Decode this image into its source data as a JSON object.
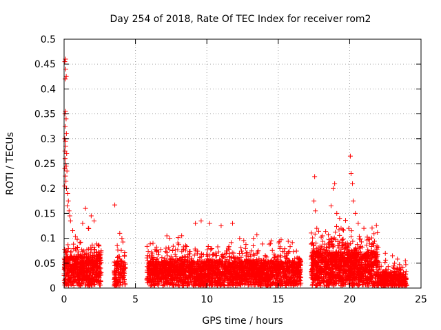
{
  "chart_data": {
    "type": "scatter",
    "title": "Day 254 of 2018, Rate Of TEC Index for receiver rom2",
    "xlabel": "GPS time / hours",
    "ylabel": "ROTI / TECUs",
    "xlim": [
      0,
      25
    ],
    "ylim": [
      0,
      0.5
    ],
    "xticks": [
      0,
      5,
      10,
      15,
      20,
      25
    ],
    "xtick_labels": [
      "0",
      "5",
      "10",
      "15",
      "20",
      "25"
    ],
    "yticks": [
      0,
      0.05,
      0.1,
      0.15,
      0.2,
      0.25,
      0.3,
      0.35,
      0.4,
      0.45,
      0.5
    ],
    "ytick_labels": [
      "0",
      "0.05",
      "0.1",
      "0.15",
      "0.2",
      "0.25",
      "0.3",
      "0.35",
      "0.4",
      "0.45",
      "0.5"
    ],
    "grid": true,
    "marker": "+",
    "series": [
      {
        "name": "ROTI",
        "color": "#ff0000",
        "clusters": [
          {
            "x_start": 0.0,
            "x_end": 2.6,
            "count": 700,
            "base_max": 0.06,
            "decay": 0.018
          },
          {
            "x_start": 3.5,
            "x_end": 4.3,
            "count": 150,
            "base_max": 0.05,
            "decay": 0.014
          },
          {
            "x_start": 5.8,
            "x_end": 16.6,
            "count": 2600,
            "base_max": 0.05,
            "decay": 0.016
          },
          {
            "x_start": 17.3,
            "x_end": 22.0,
            "count": 1300,
            "base_max": 0.07,
            "decay": 0.02
          },
          {
            "x_start": 22.0,
            "x_end": 24.0,
            "count": 350,
            "base_max": 0.025,
            "decay": 0.01
          }
        ],
        "points": [
          [
            0.05,
            0.455
          ],
          [
            0.1,
            0.46
          ],
          [
            0.08,
            0.42
          ],
          [
            0.12,
            0.44
          ],
          [
            0.15,
            0.425
          ],
          [
            0.06,
            0.35
          ],
          [
            0.1,
            0.355
          ],
          [
            0.14,
            0.34
          ],
          [
            0.08,
            0.325
          ],
          [
            0.16,
            0.31
          ],
          [
            0.05,
            0.3
          ],
          [
            0.1,
            0.295
          ],
          [
            0.12,
            0.285
          ],
          [
            0.06,
            0.275
          ],
          [
            0.18,
            0.27
          ],
          [
            0.07,
            0.26
          ],
          [
            0.11,
            0.25
          ],
          [
            0.15,
            0.245
          ],
          [
            0.05,
            0.24
          ],
          [
            0.2,
            0.235
          ],
          [
            0.09,
            0.225
          ],
          [
            0.13,
            0.215
          ],
          [
            0.04,
            0.205
          ],
          [
            0.17,
            0.2
          ],
          [
            0.25,
            0.19
          ],
          [
            0.3,
            0.175
          ],
          [
            0.22,
            0.165
          ],
          [
            0.35,
            0.155
          ],
          [
            0.4,
            0.145
          ],
          [
            0.45,
            0.135
          ],
          [
            1.5,
            0.16
          ],
          [
            1.3,
            0.13
          ],
          [
            1.7,
            0.12
          ],
          [
            1.9,
            0.145
          ],
          [
            2.1,
            0.135
          ],
          [
            3.55,
            0.167
          ],
          [
            3.9,
            0.11
          ],
          [
            4.05,
            0.1
          ],
          [
            7.2,
            0.105
          ],
          [
            7.4,
            0.1
          ],
          [
            9.2,
            0.13
          ],
          [
            9.6,
            0.135
          ],
          [
            10.2,
            0.13
          ],
          [
            11.0,
            0.125
          ],
          [
            11.8,
            0.13
          ],
          [
            12.3,
            0.1
          ],
          [
            13.6,
            0.075
          ],
          [
            14.5,
            0.095
          ],
          [
            15.2,
            0.097
          ],
          [
            17.55,
            0.224
          ],
          [
            17.5,
            0.175
          ],
          [
            17.6,
            0.155
          ],
          [
            17.7,
            0.12
          ],
          [
            18.1,
            0.105
          ],
          [
            18.7,
            0.165
          ],
          [
            18.85,
            0.2
          ],
          [
            18.95,
            0.21
          ],
          [
            19.1,
            0.15
          ],
          [
            19.3,
            0.14
          ],
          [
            19.4,
            0.12
          ],
          [
            20.05,
            0.265
          ],
          [
            20.1,
            0.23
          ],
          [
            20.2,
            0.21
          ],
          [
            20.25,
            0.175
          ],
          [
            20.4,
            0.15
          ],
          [
            20.6,
            0.13
          ],
          [
            21.0,
            0.12
          ],
          [
            21.4,
            0.09
          ],
          [
            22.5,
            0.07
          ],
          [
            23.0,
            0.065
          ]
        ]
      }
    ]
  }
}
